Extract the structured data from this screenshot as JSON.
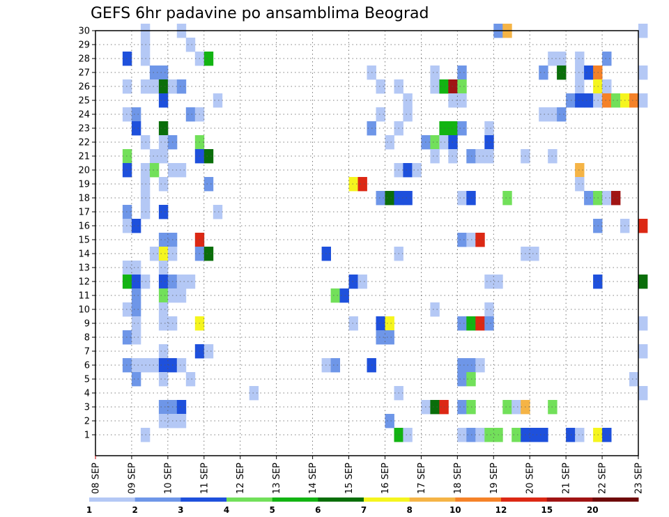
{
  "chart_data": {
    "type": "heatmap",
    "title": "GEFS 6hr padavine po ansamblima Beograd",
    "xlabel": "",
    "ylabel": "",
    "x_tick_labels": [
      "08 SEP",
      "09 SEP",
      "10 SEP",
      "11 SEP",
      "12 SEP",
      "13 SEP",
      "14 SEP",
      "15 SEP",
      "16 SEP",
      "17 SEP",
      "18 SEP",
      "19 SEP",
      "20 SEP",
      "21 SEP",
      "22 SEP",
      "23 SEP"
    ],
    "y_tick_labels": [
      "1",
      "2",
      "3",
      "4",
      "5",
      "6",
      "7",
      "8",
      "9",
      "10",
      "11",
      "12",
      "13",
      "14",
      "15",
      "16",
      "17",
      "18",
      "19",
      "20",
      "21",
      "22",
      "23",
      "24",
      "25",
      "26",
      "27",
      "28",
      "29",
      "30"
    ],
    "color_levels": [
      1,
      2,
      3,
      4,
      5,
      6,
      7,
      8,
      10,
      12,
      15,
      20
    ],
    "colors": [
      "#b4c8f5",
      "#6e96e8",
      "#1e50dc",
      "#72e05a",
      "#12b412",
      "#0a6e0a",
      "#f5f51e",
      "#f5b446",
      "#f58228",
      "#dc2814",
      "#a01414",
      "#6e0a0a"
    ],
    "grid": true,
    "x_range": [
      "08 SEP",
      "23 SEP"
    ],
    "y_range": [
      0,
      30
    ],
    "cells": [
      [
        9.25,
        30,
        1
      ],
      [
        10.25,
        30,
        1
      ],
      [
        19.0,
        30,
        2
      ],
      [
        19.25,
        30,
        8
      ],
      [
        23.0,
        30,
        1
      ],
      [
        9.25,
        29,
        1
      ],
      [
        10.5,
        29,
        1
      ],
      [
        8.75,
        28,
        3
      ],
      [
        9.25,
        28,
        1
      ],
      [
        10.75,
        28,
        1
      ],
      [
        11.0,
        28,
        5
      ],
      [
        20.5,
        28,
        1
      ],
      [
        20.75,
        28,
        1
      ],
      [
        21.25,
        28,
        1
      ],
      [
        22.0,
        28,
        2
      ],
      [
        9.5,
        27,
        2
      ],
      [
        9.75,
        27,
        2
      ],
      [
        15.5,
        27,
        1
      ],
      [
        17.25,
        27,
        1
      ],
      [
        18.0,
        27,
        2
      ],
      [
        20.25,
        27,
        2
      ],
      [
        20.75,
        27,
        6
      ],
      [
        21.25,
        27,
        1
      ],
      [
        21.5,
        27,
        3
      ],
      [
        21.75,
        27,
        9
      ],
      [
        23.0,
        27,
        1
      ],
      [
        8.75,
        26,
        1
      ],
      [
        9.25,
        26,
        1
      ],
      [
        9.5,
        26,
        1
      ],
      [
        9.75,
        26,
        6
      ],
      [
        10.0,
        26,
        1
      ],
      [
        10.25,
        26,
        2
      ],
      [
        15.75,
        26,
        1
      ],
      [
        16.25,
        26,
        1
      ],
      [
        17.25,
        26,
        1
      ],
      [
        17.5,
        26,
        5
      ],
      [
        17.75,
        26,
        11
      ],
      [
        18.0,
        26,
        4
      ],
      [
        21.25,
        26,
        1
      ],
      [
        21.75,
        26,
        7
      ],
      [
        22.0,
        26,
        1
      ],
      [
        9.75,
        25,
        3
      ],
      [
        11.25,
        25,
        1
      ],
      [
        16.5,
        25,
        1
      ],
      [
        17.75,
        25,
        1
      ],
      [
        18.0,
        25,
        1
      ],
      [
        21.0,
        25,
        2
      ],
      [
        21.25,
        25,
        3
      ],
      [
        21.5,
        25,
        3
      ],
      [
        21.75,
        25,
        1
      ],
      [
        22.0,
        25,
        9
      ],
      [
        22.25,
        25,
        4
      ],
      [
        22.5,
        25,
        7
      ],
      [
        22.75,
        25,
        9
      ],
      [
        23.0,
        25,
        1
      ],
      [
        8.75,
        24,
        1
      ],
      [
        9.0,
        24,
        2
      ],
      [
        10.5,
        24,
        2
      ],
      [
        10.75,
        24,
        1
      ],
      [
        15.75,
        24,
        1
      ],
      [
        16.5,
        24,
        1
      ],
      [
        20.25,
        24,
        1
      ],
      [
        20.5,
        24,
        1
      ],
      [
        20.75,
        24,
        2
      ],
      [
        9.0,
        23,
        3
      ],
      [
        9.75,
        23,
        6
      ],
      [
        15.5,
        23,
        2
      ],
      [
        16.25,
        23,
        1
      ],
      [
        17.5,
        23,
        5
      ],
      [
        17.75,
        23,
        5
      ],
      [
        18.0,
        23,
        2
      ],
      [
        18.75,
        23,
        1
      ],
      [
        9.25,
        22,
        1
      ],
      [
        9.75,
        22,
        1
      ],
      [
        10.0,
        22,
        2
      ],
      [
        10.75,
        22,
        4
      ],
      [
        16.0,
        22,
        1
      ],
      [
        17.0,
        22,
        2
      ],
      [
        17.25,
        22,
        4
      ],
      [
        17.5,
        22,
        1
      ],
      [
        17.75,
        22,
        3
      ],
      [
        18.75,
        22,
        3
      ],
      [
        8.75,
        21,
        4
      ],
      [
        9.5,
        21,
        1
      ],
      [
        9.75,
        21,
        1
      ],
      [
        10.75,
        21,
        3
      ],
      [
        11.0,
        21,
        6
      ],
      [
        17.25,
        21,
        1
      ],
      [
        17.75,
        21,
        1
      ],
      [
        18.25,
        21,
        2
      ],
      [
        18.5,
        21,
        1
      ],
      [
        18.75,
        21,
        1
      ],
      [
        19.75,
        21,
        1
      ],
      [
        20.5,
        21,
        1
      ],
      [
        8.75,
        20,
        3
      ],
      [
        9.25,
        20,
        1
      ],
      [
        9.5,
        20,
        4
      ],
      [
        10.0,
        20,
        1
      ],
      [
        10.25,
        20,
        1
      ],
      [
        16.25,
        20,
        1
      ],
      [
        16.5,
        20,
        3
      ],
      [
        16.75,
        20,
        1
      ],
      [
        21.25,
        20,
        8
      ],
      [
        9.25,
        19,
        1
      ],
      [
        9.75,
        19,
        1
      ],
      [
        11.0,
        19,
        2
      ],
      [
        15.0,
        19,
        7
      ],
      [
        15.25,
        19,
        10
      ],
      [
        21.25,
        19,
        1
      ],
      [
        9.25,
        18,
        1
      ],
      [
        15.75,
        18,
        2
      ],
      [
        16.0,
        18,
        6
      ],
      [
        16.25,
        18,
        3
      ],
      [
        16.5,
        18,
        3
      ],
      [
        18.0,
        18,
        1
      ],
      [
        18.25,
        18,
        3
      ],
      [
        19.25,
        18,
        4
      ],
      [
        21.5,
        18,
        2
      ],
      [
        21.75,
        18,
        4
      ],
      [
        22.0,
        18,
        1
      ],
      [
        22.25,
        18,
        11
      ],
      [
        9.25,
        17,
        1
      ],
      [
        8.75,
        17,
        2
      ],
      [
        9.75,
        17,
        3
      ],
      [
        11.25,
        17,
        1
      ],
      [
        8.75,
        16,
        1
      ],
      [
        9.0,
        16,
        3
      ],
      [
        21.75,
        16,
        2
      ],
      [
        22.5,
        16,
        1
      ],
      [
        23.0,
        16,
        10
      ],
      [
        9.75,
        15,
        2
      ],
      [
        10.0,
        15,
        2
      ],
      [
        10.75,
        15,
        10
      ],
      [
        18.0,
        15,
        2
      ],
      [
        18.25,
        15,
        1
      ],
      [
        18.5,
        15,
        10
      ],
      [
        9.5,
        14,
        1
      ],
      [
        9.75,
        14,
        7
      ],
      [
        10.0,
        14,
        1
      ],
      [
        10.75,
        14,
        2
      ],
      [
        11.0,
        14,
        6
      ],
      [
        14.25,
        14,
        3
      ],
      [
        16.25,
        14,
        1
      ],
      [
        19.75,
        14,
        1
      ],
      [
        20.0,
        14,
        1
      ],
      [
        8.75,
        13,
        1
      ],
      [
        9.0,
        13,
        1
      ],
      [
        9.75,
        13,
        1
      ],
      [
        8.75,
        12,
        5
      ],
      [
        9.0,
        12,
        3
      ],
      [
        9.25,
        12,
        1
      ],
      [
        9.75,
        12,
        3
      ],
      [
        10.0,
        12,
        2
      ],
      [
        10.25,
        12,
        1
      ],
      [
        10.5,
        12,
        1
      ],
      [
        15.0,
        12,
        3
      ],
      [
        15.25,
        12,
        1
      ],
      [
        18.75,
        12,
        1
      ],
      [
        19.0,
        12,
        1
      ],
      [
        21.75,
        12,
        3
      ],
      [
        23.0,
        12,
        6
      ],
      [
        9.0,
        11,
        2
      ],
      [
        9.75,
        11,
        4
      ],
      [
        10.0,
        11,
        1
      ],
      [
        10.25,
        11,
        1
      ],
      [
        14.5,
        11,
        4
      ],
      [
        14.75,
        11,
        3
      ],
      [
        8.75,
        10,
        1
      ],
      [
        9.0,
        10,
        2
      ],
      [
        9.75,
        10,
        1
      ],
      [
        17.25,
        10,
        1
      ],
      [
        18.75,
        10,
        1
      ],
      [
        9.0,
        9,
        1
      ],
      [
        9.75,
        9,
        1
      ],
      [
        10.0,
        9,
        1
      ],
      [
        10.75,
        9,
        7
      ],
      [
        15.0,
        9,
        1
      ],
      [
        15.75,
        9,
        3
      ],
      [
        16.0,
        9,
        7
      ],
      [
        18.0,
        9,
        2
      ],
      [
        18.25,
        9,
        5
      ],
      [
        18.5,
        9,
        10
      ],
      [
        18.75,
        9,
        2
      ],
      [
        23.0,
        9,
        1
      ],
      [
        8.75,
        8,
        2
      ],
      [
        9.0,
        8,
        1
      ],
      [
        15.75,
        8,
        2
      ],
      [
        16.0,
        8,
        2
      ],
      [
        9.75,
        7,
        1
      ],
      [
        10.75,
        7,
        3
      ],
      [
        11.0,
        7,
        1
      ],
      [
        23.0,
        7,
        1
      ],
      [
        8.75,
        6,
        2
      ],
      [
        9.0,
        6,
        1
      ],
      [
        9.25,
        6,
        1
      ],
      [
        9.5,
        6,
        1
      ],
      [
        9.75,
        6,
        3
      ],
      [
        10.0,
        6,
        3
      ],
      [
        10.25,
        6,
        1
      ],
      [
        14.25,
        6,
        1
      ],
      [
        14.5,
        6,
        2
      ],
      [
        15.5,
        6,
        3
      ],
      [
        18.0,
        6,
        2
      ],
      [
        18.25,
        6,
        2
      ],
      [
        18.5,
        6,
        1
      ],
      [
        9.0,
        5,
        2
      ],
      [
        9.75,
        5,
        1
      ],
      [
        10.5,
        5,
        1
      ],
      [
        18.0,
        5,
        2
      ],
      [
        18.25,
        5,
        4
      ],
      [
        22.75,
        5,
        1
      ],
      [
        12.25,
        4,
        1
      ],
      [
        16.25,
        4,
        1
      ],
      [
        23.0,
        4,
        1
      ],
      [
        9.75,
        3,
        2
      ],
      [
        10.0,
        3,
        2
      ],
      [
        10.25,
        3,
        3
      ],
      [
        17.0,
        3,
        1
      ],
      [
        17.25,
        3,
        6
      ],
      [
        17.5,
        3,
        10
      ],
      [
        18.0,
        3,
        2
      ],
      [
        18.25,
        3,
        4
      ],
      [
        19.25,
        3,
        4
      ],
      [
        19.5,
        3,
        1
      ],
      [
        19.75,
        3,
        8
      ],
      [
        20.5,
        3,
        4
      ],
      [
        9.75,
        2,
        1
      ],
      [
        10.0,
        2,
        1
      ],
      [
        10.25,
        2,
        1
      ],
      [
        16.0,
        2,
        2
      ],
      [
        9.25,
        1,
        1
      ],
      [
        16.25,
        1,
        5
      ],
      [
        16.5,
        1,
        1
      ],
      [
        18.0,
        1,
        1
      ],
      [
        18.25,
        1,
        2
      ],
      [
        18.5,
        1,
        1
      ],
      [
        18.75,
        1,
        4
      ],
      [
        19.0,
        1,
        4
      ],
      [
        19.5,
        1,
        4
      ],
      [
        19.75,
        1,
        3
      ],
      [
        20.0,
        1,
        3
      ],
      [
        20.25,
        1,
        3
      ],
      [
        21.0,
        1,
        3
      ],
      [
        21.25,
        1,
        1
      ],
      [
        21.75,
        1,
        7
      ],
      [
        22.0,
        1,
        3
      ]
    ]
  }
}
